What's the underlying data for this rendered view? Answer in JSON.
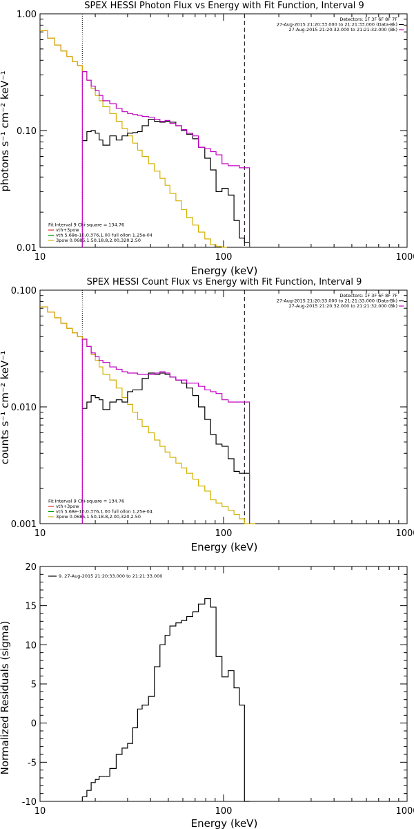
{
  "chart_data": [
    {
      "type": "line",
      "title": "SPEX HESSI Photon Flux vs Energy with Fit Function, Interval 9",
      "xlabel": "Energy (keV)",
      "ylabel": "photons s⁻¹ cm⁻² keV⁻¹",
      "xscale": "log",
      "yscale": "log",
      "xlim": [
        10,
        1000
      ],
      "ylim": [
        0.01,
        1.0
      ],
      "xticks": [
        10,
        100,
        1000
      ],
      "xtick_labels": [
        "10",
        "100",
        "1000"
      ],
      "yticks": [
        0.01,
        0.1,
        1.0
      ],
      "ytick_labels": [
        "0.01",
        "0.10",
        "1.00"
      ],
      "legend_topright": [
        {
          "text": "Detectors: 1F 3F 6F 8F 7F",
          "color": "#000000"
        },
        {
          "text": "27-Aug-2015 21:20:33.000 to 21:21:33.000 (Data-Bk)",
          "color": "#000000"
        },
        {
          "text": "27-Aug-2015 21:20:32.000 to 21:21:32.000 (Bk)",
          "color": "#c000c0"
        }
      ],
      "legend_bottomleft": [
        {
          "text": "Fit Interval 9   Chi-square = 134.76",
          "color": "#000000"
        },
        {
          "text": "vth+3pow",
          "color": "#e03030"
        },
        {
          "text": "vth 5.68e-10,0.376,1.00  full ollon 1.25e-04",
          "color": "#00a000"
        },
        {
          "text": "3pow 0.0685,1.50,18.8,2.00,320,2.50",
          "color": "#d4b000"
        }
      ],
      "vlines": [
        {
          "x": 17,
          "style": "dotted"
        },
        {
          "x": 130,
          "style": "dashed"
        }
      ],
      "series": [
        {
          "name": "vth+3pow",
          "color": "#e03030",
          "x": [
            10,
            11,
            12,
            13,
            14,
            15,
            16,
            17
          ],
          "y": [
            0.72,
            0.62,
            0.54,
            0.48,
            0.43,
            0.39,
            0.36,
            0.32
          ]
        },
        {
          "name": "3pow",
          "color": "#d4b000",
          "x": [
            10,
            11,
            12,
            13,
            14,
            15,
            16,
            17,
            18,
            19,
            20,
            21,
            22,
            24,
            26,
            28,
            30,
            32,
            34,
            36,
            39,
            42,
            45,
            48,
            51,
            55,
            59,
            63,
            68,
            73,
            79,
            85,
            91,
            98
          ],
          "y": [
            0.72,
            0.62,
            0.54,
            0.48,
            0.43,
            0.39,
            0.36,
            0.32,
            0.27,
            0.23,
            0.2,
            0.18,
            0.16,
            0.14,
            0.12,
            0.104,
            0.09,
            0.078,
            0.068,
            0.06,
            0.052,
            0.045,
            0.039,
            0.034,
            0.029,
            0.025,
            0.021,
            0.018,
            0.0155,
            0.0135,
            0.0118,
            0.0105,
            0.0102,
            0.01
          ]
        },
        {
          "name": "Data-Bk",
          "color": "#000000",
          "x": [
            17,
            18,
            19,
            20,
            21,
            22,
            24,
            26,
            28,
            30,
            32,
            34,
            36,
            39,
            42,
            45,
            48,
            51,
            55,
            59,
            63,
            68,
            73,
            79,
            85,
            91,
            98,
            106,
            114,
            122,
            130
          ],
          "y": [
            0.082,
            0.098,
            0.1,
            0.095,
            0.083,
            0.075,
            0.09,
            0.083,
            0.09,
            0.095,
            0.096,
            0.098,
            0.11,
            0.125,
            0.12,
            0.118,
            0.12,
            0.118,
            0.11,
            0.1,
            0.093,
            0.085,
            0.072,
            0.058,
            0.046,
            0.03,
            0.032,
            0.028,
            0.017,
            0.012,
            0.011
          ]
        },
        {
          "name": "Bk",
          "color": "#c000c0",
          "x": [
            17,
            18,
            19,
            20,
            21,
            22,
            24,
            26,
            28,
            30,
            32,
            34,
            36,
            39,
            42,
            45,
            48,
            51,
            55,
            59,
            63,
            68,
            73,
            79,
            85,
            91,
            98,
            106,
            114,
            122,
            130
          ],
          "y": [
            0.32,
            0.27,
            0.24,
            0.22,
            0.2,
            0.18,
            0.17,
            0.155,
            0.145,
            0.14,
            0.137,
            0.135,
            0.132,
            0.13,
            0.125,
            0.12,
            0.122,
            0.115,
            0.11,
            0.102,
            0.095,
            0.09,
            0.072,
            0.07,
            0.066,
            0.062,
            0.052,
            0.05,
            0.05,
            0.048,
            0.048
          ]
        }
      ]
    },
    {
      "type": "line",
      "title": "SPEX HESSI Count Flux vs Energy with Fit Function, Interval 9",
      "xlabel": "Energy (keV)",
      "ylabel": "counts s⁻¹ cm⁻² keV⁻¹",
      "xscale": "log",
      "yscale": "log",
      "xlim": [
        10,
        1000
      ],
      "ylim": [
        0.001,
        0.1
      ],
      "xticks": [
        10,
        100,
        1000
      ],
      "xtick_labels": [
        "10",
        "100",
        "1000"
      ],
      "yticks": [
        0.001,
        0.01,
        0.1
      ],
      "ytick_labels": [
        "0.001",
        "0.010",
        "0.100"
      ],
      "legend_topright": [
        {
          "text": "Detectors: 1F 3F 6F 8F 7F",
          "color": "#000000"
        },
        {
          "text": "27-Aug-2015 21:20:33.000 to 21:21:33.000 (Data-Bk)",
          "color": "#000000"
        },
        {
          "text": "27-Aug-2015 21:20:32.000 to 21:21:32.000 (Bk)",
          "color": "#c000c0"
        }
      ],
      "legend_bottomleft": [
        {
          "text": "Fit Interval 9   Chi-square = 134.76",
          "color": "#000000"
        },
        {
          "text": "vth+3pow",
          "color": "#e03030"
        },
        {
          "text": "vth 5.68e-10,0.376,1.00  full ollon 1.25e-04",
          "color": "#00a000"
        },
        {
          "text": "3pow 0.0685,1.50,18.8,2.00,320,2.50",
          "color": "#d4b000"
        }
      ],
      "vlines": [
        {
          "x": 17,
          "style": "dotted"
        },
        {
          "x": 130,
          "style": "dashed"
        }
      ],
      "series": [
        {
          "name": "vth+3pow",
          "color": "#e03030",
          "x": [
            10,
            11,
            12,
            13,
            14,
            15,
            16,
            17
          ],
          "y": [
            0.072,
            0.065,
            0.058,
            0.052,
            0.047,
            0.043,
            0.04,
            0.038
          ]
        },
        {
          "name": "3pow",
          "color": "#d4b000",
          "x": [
            10,
            11,
            12,
            13,
            14,
            15,
            16,
            17,
            18,
            19,
            20,
            21,
            22,
            24,
            26,
            28,
            30,
            32,
            34,
            36,
            39,
            42,
            45,
            48,
            51,
            55,
            59,
            63,
            68,
            73,
            79,
            85,
            91,
            98,
            106,
            114,
            122,
            130,
            140
          ],
          "y": [
            0.072,
            0.065,
            0.058,
            0.052,
            0.047,
            0.043,
            0.04,
            0.038,
            0.033,
            0.028,
            0.025,
            0.022,
            0.019,
            0.017,
            0.0145,
            0.012,
            0.0105,
            0.009,
            0.0078,
            0.0068,
            0.006,
            0.0052,
            0.0046,
            0.0041,
            0.0037,
            0.0033,
            0.003,
            0.0027,
            0.0024,
            0.0021,
            0.0019,
            0.0016,
            0.0015,
            0.0014,
            0.0013,
            0.0012,
            0.0011,
            0.001,
            0.001
          ]
        },
        {
          "name": "Data-Bk",
          "color": "#000000",
          "x": [
            17,
            18,
            19,
            20,
            21,
            22,
            24,
            26,
            28,
            30,
            32,
            34,
            36,
            39,
            42,
            45,
            48,
            51,
            55,
            59,
            63,
            68,
            73,
            79,
            85,
            91,
            98,
            106,
            114,
            122,
            130
          ],
          "y": [
            0.0097,
            0.011,
            0.0125,
            0.012,
            0.0115,
            0.0095,
            0.011,
            0.0115,
            0.011,
            0.0135,
            0.014,
            0.014,
            0.0175,
            0.0195,
            0.019,
            0.0195,
            0.019,
            0.018,
            0.017,
            0.016,
            0.0145,
            0.0125,
            0.01,
            0.0078,
            0.0058,
            0.0048,
            0.0046,
            0.0036,
            0.0028,
            0.0027,
            0.0027
          ]
        },
        {
          "name": "Bk",
          "color": "#c000c0",
          "x": [
            17,
            18,
            19,
            20,
            21,
            22,
            24,
            26,
            28,
            30,
            32,
            34,
            36,
            39,
            42,
            45,
            48,
            51,
            55,
            59,
            63,
            68,
            73,
            79,
            85,
            91,
            98,
            106,
            114,
            122,
            130
          ],
          "y": [
            0.038,
            0.033,
            0.029,
            0.027,
            0.025,
            0.024,
            0.022,
            0.021,
            0.02,
            0.0195,
            0.0195,
            0.019,
            0.019,
            0.019,
            0.0195,
            0.02,
            0.0195,
            0.018,
            0.017,
            0.017,
            0.016,
            0.016,
            0.015,
            0.014,
            0.0135,
            0.013,
            0.0115,
            0.011,
            0.011,
            0.011,
            0.011
          ]
        }
      ]
    },
    {
      "type": "line",
      "title": "",
      "xlabel": "Energy (keV)",
      "ylabel": "Normalized Residuals (sigma)",
      "xscale": "log",
      "yscale": "linear",
      "xlim": [
        10,
        1000
      ],
      "ylim": [
        -10,
        20
      ],
      "xticks": [
        10,
        100,
        1000
      ],
      "xtick_labels": [
        "10",
        "100",
        "1000"
      ],
      "yticks": [
        -10,
        -5,
        0,
        5,
        10,
        15,
        20
      ],
      "ytick_labels": [
        "-10",
        "-5",
        "0",
        "5",
        "10",
        "15",
        "20"
      ],
      "legend_topleft": [
        {
          "text": "9. 27-Aug-2015 21:20:33.000 to 21:21:33.000",
          "color": "#000000"
        }
      ],
      "series": [
        {
          "name": "9. 27-Aug-2015 21:20:33.000 to 21:21:33.000",
          "color": "#000000",
          "x": [
            17,
            18,
            19,
            20,
            21,
            22,
            24,
            26,
            28,
            30,
            32,
            34,
            36,
            39,
            42,
            45,
            48,
            51,
            55,
            59,
            63,
            68,
            73,
            79,
            85,
            91,
            98,
            106,
            114,
            122,
            130
          ],
          "y": [
            -9.4,
            -8.6,
            -7.6,
            -7.2,
            -6.8,
            -6.8,
            -5.8,
            -4.0,
            -3.2,
            -2.6,
            -0.6,
            1.8,
            2.3,
            3.4,
            7.2,
            10.0,
            11.2,
            12.4,
            12.8,
            13.1,
            13.6,
            14.2,
            15.2,
            15.9,
            14.8,
            8.5,
            5.9,
            6.7,
            4.5,
            2.3,
            -10.0
          ]
        }
      ]
    }
  ]
}
